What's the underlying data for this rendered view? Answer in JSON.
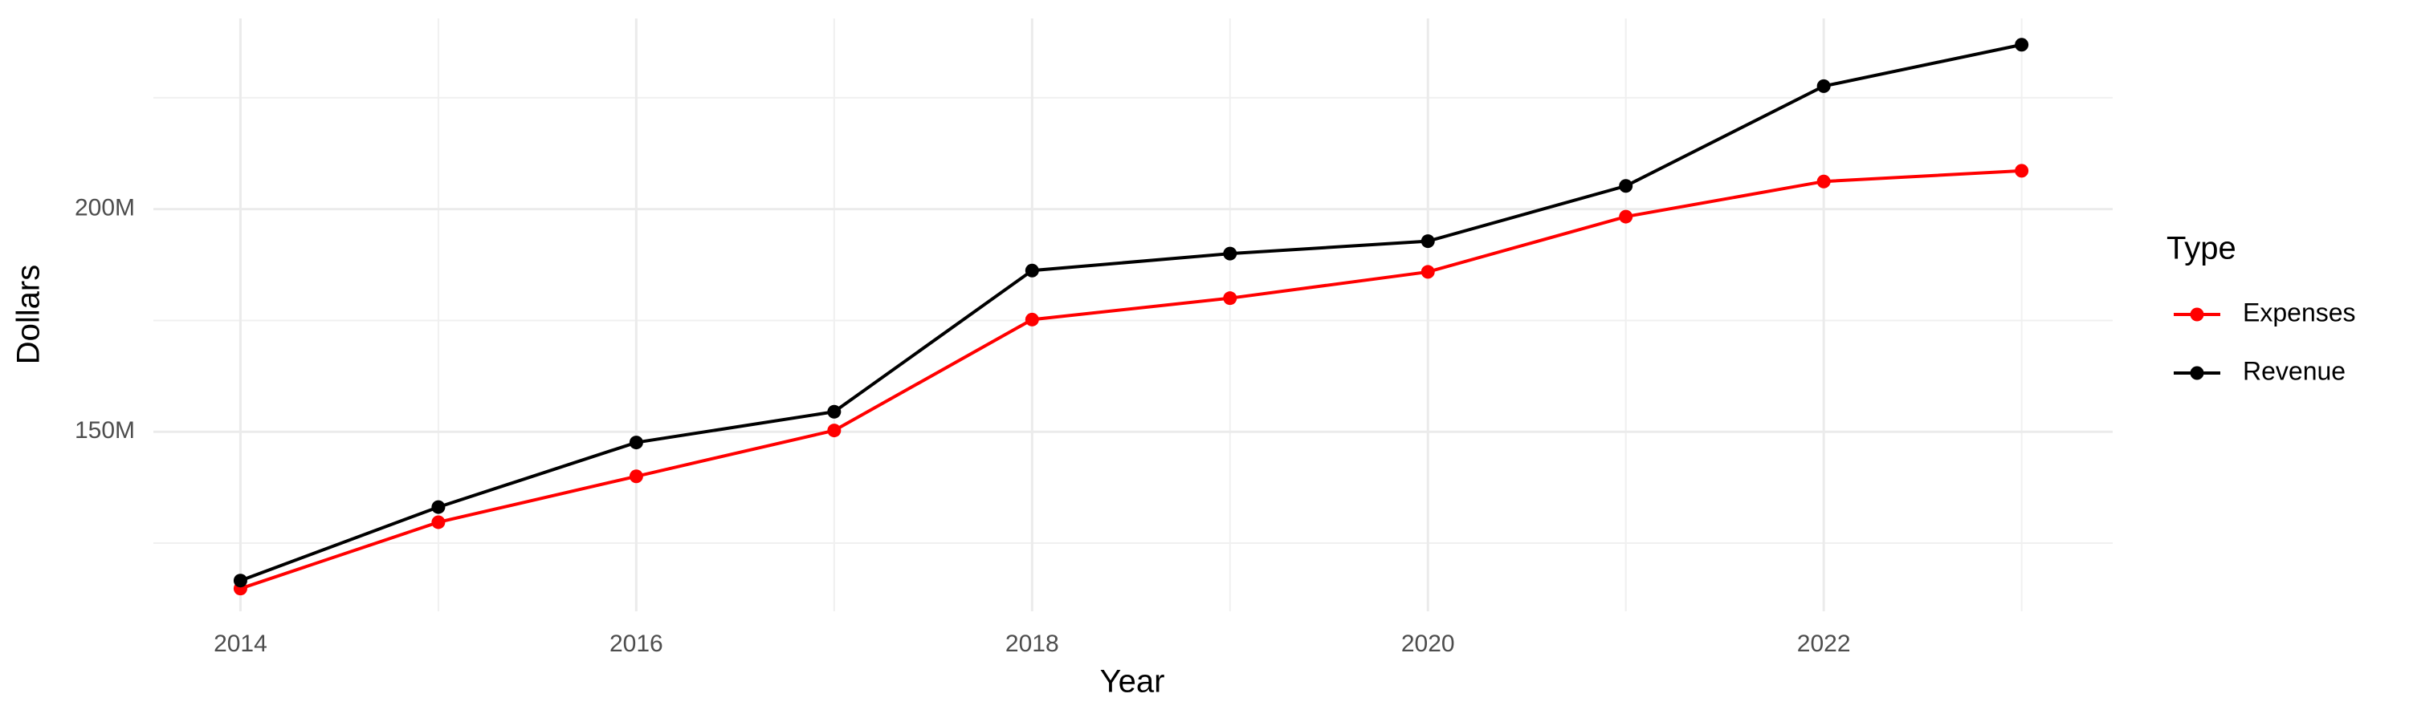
{
  "chart_data": {
    "type": "line",
    "x_label": "Year",
    "y_label": "Dollars",
    "legend_title": "Type",
    "x": [
      2014,
      2015,
      2016,
      2017,
      2018,
      2019,
      2020,
      2021,
      2022,
      2023
    ],
    "series": [
      {
        "name": "Expenses",
        "color": "#ff0000",
        "values": [
          114800000,
          129700000,
          140000000,
          150300000,
          175200000,
          180000000,
          185900000,
          198300000,
          206200000,
          208600000
        ]
      },
      {
        "name": "Revenue",
        "color": "#000000",
        "values": [
          116600000,
          133100000,
          147600000,
          154500000,
          186200000,
          190000000,
          192800000,
          205200000,
          227600000,
          236900000
        ]
      }
    ],
    "xlim": [
      2013.56,
      2023.46
    ],
    "xticks": [
      2014,
      2016,
      2018,
      2020,
      2022
    ],
    "ylim": [
      109700000,
      242800000
    ],
    "yticks": [
      {
        "value": 150000000,
        "label": "150M"
      },
      {
        "value": 200000000,
        "label": "200M"
      }
    ],
    "grid": true,
    "legend": "right"
  }
}
